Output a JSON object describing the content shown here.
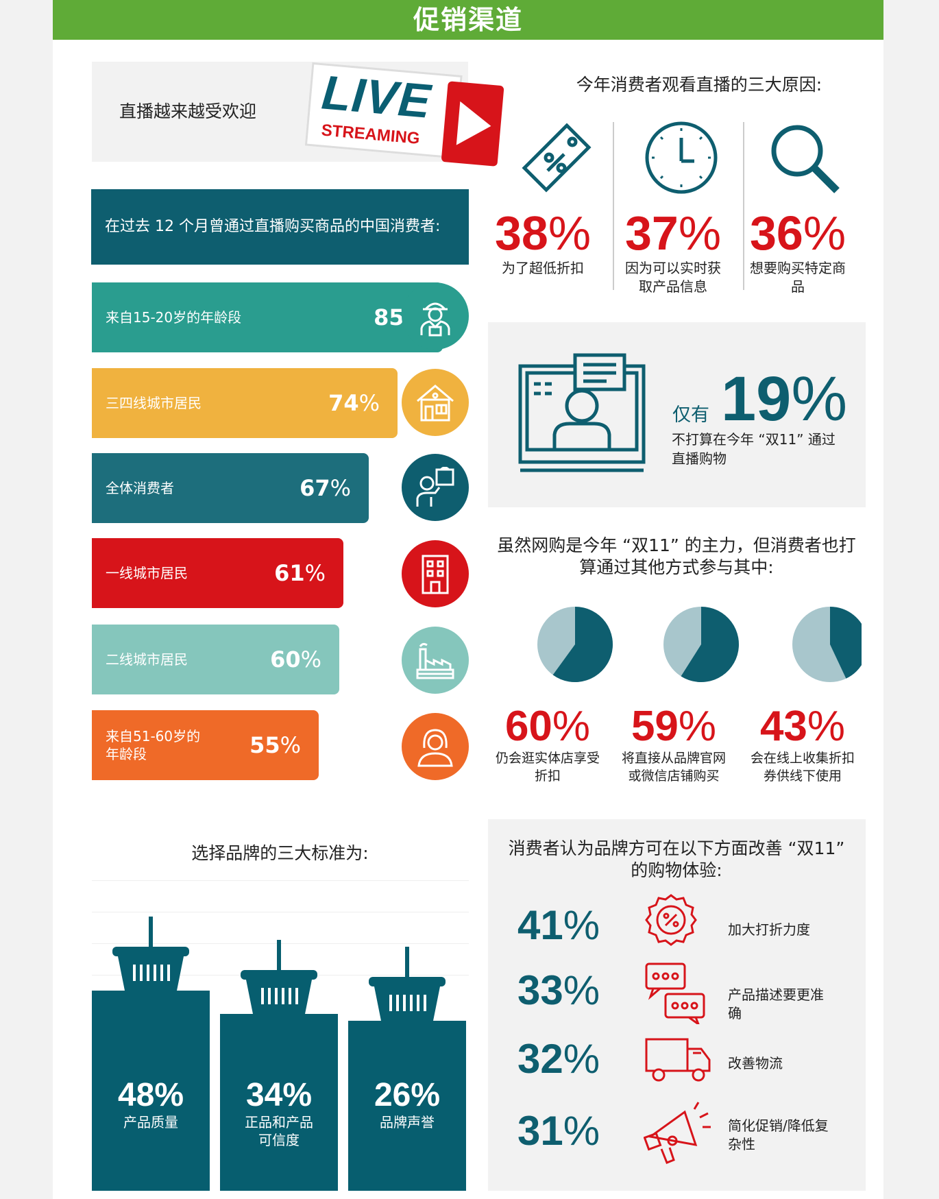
{
  "header": {
    "title": "促销渠道"
  },
  "live": {
    "title": "直播越来越受欢迎",
    "live_word": "LIVE",
    "streaming_word": "STREAMING"
  },
  "purchase": {
    "title": "在过去 12 个月曾通过直播购买商品的中国消费者:",
    "bars": [
      {
        "label": "来自15-20岁的年龄段",
        "value": "85",
        "pct": 85,
        "color": "#2a9d8f"
      },
      {
        "label": "三四线城市居民",
        "value": "74",
        "pct": 74,
        "color": "#f0b23f"
      },
      {
        "label": "全体消费者",
        "value": "67",
        "pct": 67,
        "color": "#1d6e7c"
      },
      {
        "label": "一线城市居民",
        "value": "61",
        "pct": 61,
        "color": "#d7141a"
      },
      {
        "label": "二线城市居民",
        "value": "60",
        "pct": 60,
        "color": "#85c6bc"
      },
      {
        "label": "来自51-60岁的年龄段",
        "value": "55",
        "pct": 55,
        "color": "#ef6a28"
      }
    ],
    "icons": [
      "delivery-person-icon",
      "house-icon",
      "shopper-icon",
      "building-icon",
      "factory-icon",
      "woman-icon"
    ]
  },
  "reasons": {
    "title": "今年消费者观看直播的三大原因:",
    "items": [
      {
        "value": "38",
        "text": "为了超低折扣",
        "icon": "discount-tag-icon"
      },
      {
        "value": "37",
        "text": "因为可以实时获取产品信息",
        "icon": "clock-icon"
      },
      {
        "value": "36",
        "text": "想要购买特定商品",
        "icon": "search-icon"
      }
    ]
  },
  "stream19": {
    "prefix": "仅有",
    "value": "19",
    "text": "不打算在今年 “双11” 通过直播购物"
  },
  "online": {
    "title": "虽然网购是今年 “双11” 的主力，但消费者也打算通过其他方式参与其中:",
    "items": [
      {
        "value": "60",
        "pct": 60,
        "text": "仍会逛实体店享受折扣"
      },
      {
        "value": "59",
        "pct": 59,
        "text": "将直接从品牌官网或微信店铺购买"
      },
      {
        "value": "43",
        "pct": 43,
        "text": "会在线上收集折扣券供线下使用"
      }
    ]
  },
  "criteria": {
    "title": "选择品牌的三大标准为:",
    "items": [
      {
        "value": "48%",
        "pct": 48,
        "text": "产品质量"
      },
      {
        "value": "34%",
        "pct": 34,
        "text": "正品和产品可信度"
      },
      {
        "value": "26%",
        "pct": 26,
        "text": "品牌声誉"
      }
    ]
  },
  "improve": {
    "title": "消费者认为品牌方可在以下方面改善 “双11” 的购物体验:",
    "items": [
      {
        "value": "41",
        "text": "加大打折力度",
        "icon": "discount-badge-icon"
      },
      {
        "value": "33",
        "text": "产品描述要更准确",
        "icon": "chat-bubbles-icon"
      },
      {
        "value": "32",
        "text": "改善物流",
        "icon": "truck-icon"
      },
      {
        "value": "31",
        "text": "简化促销/降低复杂性",
        "icon": "megaphone-icon"
      }
    ]
  },
  "colors": {
    "teal": "#0e5e6f",
    "red": "#d7141a",
    "green": "#5fab37",
    "pie_light": "#a8c6cc"
  }
}
